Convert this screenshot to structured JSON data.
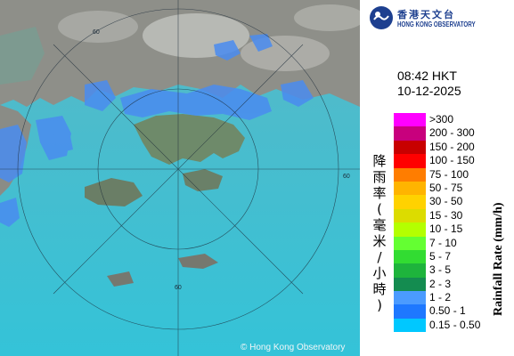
{
  "header": {
    "org_name_zh": "香港天文台",
    "org_name_en": "HONG KONG OBSERVATORY",
    "time": "08:42 HKT",
    "date": "10-12-2025"
  },
  "legend": {
    "title_zh": "降雨率(毫米/小時)",
    "title_en": "Rainfall Rate (mm/h)",
    "items": [
      {
        "label": ">300",
        "color": "#ff00ff"
      },
      {
        "label": "200 - 300",
        "color": "#c8007d"
      },
      {
        "label": "150 - 200",
        "color": "#c80000"
      },
      {
        "label": "100 - 150",
        "color": "#ff0000"
      },
      {
        "label": "75 - 100",
        "color": "#ff7d00"
      },
      {
        "label": "50 - 75",
        "color": "#ffb400"
      },
      {
        "label": "30 - 50",
        "color": "#ffd200"
      },
      {
        "label": "15 - 30",
        "color": "#dcdc00"
      },
      {
        "label": "10 - 15",
        "color": "#b4ff00"
      },
      {
        "label": "7 - 10",
        "color": "#64ff32"
      },
      {
        "label": "5 - 7",
        "color": "#32dc32"
      },
      {
        "label": "3 - 5",
        "color": "#1eb43c"
      },
      {
        "label": "2 - 3",
        "color": "#148c50"
      },
      {
        "label": "1 - 2",
        "color": "#4b9bff"
      },
      {
        "label": "0.50 - 1",
        "color": "#1e78ff"
      },
      {
        "label": "0.15 - 0.50",
        "color": "#00c8ff"
      }
    ]
  },
  "map": {
    "range_ring_label": "60",
    "copyright": "© Hong Kong Observatory",
    "colors": {
      "sea": "#3fb6c8",
      "land": "#8c8c84",
      "rain_light": "#4a8cf0"
    }
  }
}
